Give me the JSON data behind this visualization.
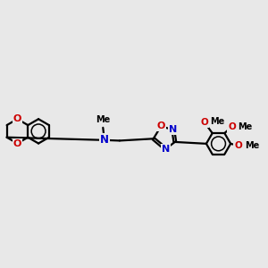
{
  "background_color": "#e8e8e8",
  "bond_color": "#000000",
  "nitrogen_color": "#0000cc",
  "oxygen_color": "#cc0000",
  "line_width": 1.6,
  "figsize": [
    3.0,
    3.0
  ],
  "dpi": 100,
  "xlim": [
    -4.5,
    5.0
  ],
  "ylim": [
    -2.5,
    2.5
  ]
}
